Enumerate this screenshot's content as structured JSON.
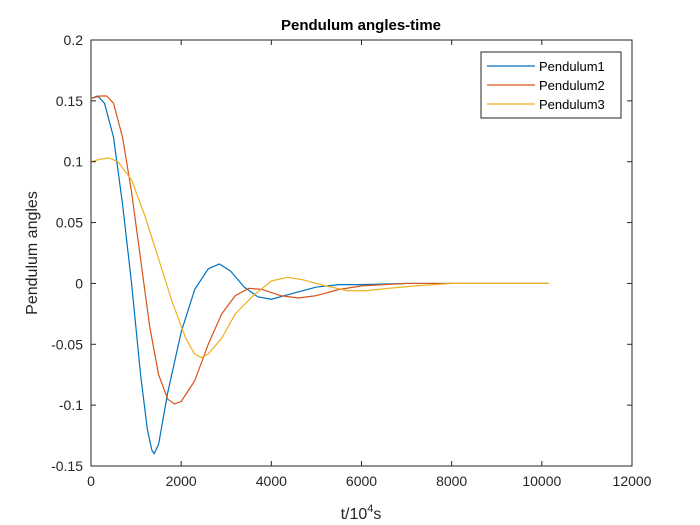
{
  "chart_data": {
    "type": "line",
    "title": "Pendulum angles-time",
    "xlabel": {
      "base": "t/10",
      "sup": "4",
      "rest": "s"
    },
    "ylabel": "Pendulum angles",
    "xlim": [
      0,
      12000
    ],
    "ylim": [
      -0.15,
      0.2
    ],
    "xticks": [
      0,
      2000,
      4000,
      6000,
      8000,
      10000,
      12000
    ],
    "xtick_labels": [
      "0",
      "2000",
      "4000",
      "6000",
      "8000",
      "10000",
      "12000"
    ],
    "yticks": [
      -0.15,
      -0.1,
      -0.05,
      0,
      0.05,
      0.1,
      0.15,
      0.2
    ],
    "ytick_labels": [
      "-0.15",
      "-0.1",
      "-0.05",
      "0",
      "0.05",
      "0.1",
      "0.15",
      "0.2"
    ],
    "grid": false,
    "legend_position": "top-right",
    "series": [
      {
        "name": "Pendulum1",
        "color": "#0072BD",
        "points": [
          [
            0,
            0.152
          ],
          [
            150,
            0.154
          ],
          [
            300,
            0.148
          ],
          [
            500,
            0.12
          ],
          [
            700,
            0.065
          ],
          [
            900,
            0.0
          ],
          [
            1100,
            -0.075
          ],
          [
            1250,
            -0.12
          ],
          [
            1350,
            -0.137
          ],
          [
            1400,
            -0.14
          ],
          [
            1500,
            -0.132
          ],
          [
            1700,
            -0.09
          ],
          [
            2000,
            -0.04
          ],
          [
            2300,
            -0.005
          ],
          [
            2600,
            0.012
          ],
          [
            2850,
            0.016
          ],
          [
            3100,
            0.01
          ],
          [
            3400,
            -0.003
          ],
          [
            3700,
            -0.011
          ],
          [
            4000,
            -0.013
          ],
          [
            4300,
            -0.01
          ],
          [
            4700,
            -0.006
          ],
          [
            5000,
            -0.003
          ],
          [
            5500,
            -0.001
          ],
          [
            6000,
            -0.001
          ],
          [
            7000,
            0.0
          ],
          [
            8000,
            0.0
          ],
          [
            9000,
            0.0
          ],
          [
            10150,
            0.0
          ]
        ]
      },
      {
        "name": "Pendulum2",
        "color": "#D95319",
        "points": [
          [
            0,
            0.152
          ],
          [
            200,
            0.154
          ],
          [
            350,
            0.154
          ],
          [
            500,
            0.148
          ],
          [
            700,
            0.12
          ],
          [
            900,
            0.075
          ],
          [
            1100,
            0.02
          ],
          [
            1300,
            -0.035
          ],
          [
            1500,
            -0.075
          ],
          [
            1700,
            -0.095
          ],
          [
            1850,
            -0.099
          ],
          [
            2000,
            -0.097
          ],
          [
            2300,
            -0.08
          ],
          [
            2600,
            -0.05
          ],
          [
            2900,
            -0.025
          ],
          [
            3200,
            -0.01
          ],
          [
            3500,
            -0.004
          ],
          [
            3800,
            -0.005
          ],
          [
            4200,
            -0.01
          ],
          [
            4600,
            -0.012
          ],
          [
            5000,
            -0.01
          ],
          [
            5500,
            -0.005
          ],
          [
            6000,
            -0.002
          ],
          [
            7000,
            0.0
          ],
          [
            8000,
            0.0
          ],
          [
            9000,
            0.0
          ],
          [
            10150,
            0.0
          ]
        ]
      },
      {
        "name": "Pendulum3",
        "color": "#EDB120",
        "points": [
          [
            0,
            0.1
          ],
          [
            200,
            0.102
          ],
          [
            400,
            0.103
          ],
          [
            600,
            0.1
          ],
          [
            900,
            0.085
          ],
          [
            1200,
            0.055
          ],
          [
            1500,
            0.02
          ],
          [
            1800,
            -0.015
          ],
          [
            2100,
            -0.045
          ],
          [
            2300,
            -0.058
          ],
          [
            2450,
            -0.061
          ],
          [
            2600,
            -0.058
          ],
          [
            2900,
            -0.045
          ],
          [
            3200,
            -0.025
          ],
          [
            3600,
            -0.01
          ],
          [
            4000,
            0.002
          ],
          [
            4350,
            0.005
          ],
          [
            4700,
            0.003
          ],
          [
            5200,
            -0.002
          ],
          [
            5700,
            -0.006
          ],
          [
            6100,
            -0.006
          ],
          [
            6600,
            -0.004
          ],
          [
            7200,
            -0.002
          ],
          [
            8000,
            0.0
          ],
          [
            9000,
            0.0
          ],
          [
            10150,
            0.0
          ]
        ]
      }
    ]
  }
}
